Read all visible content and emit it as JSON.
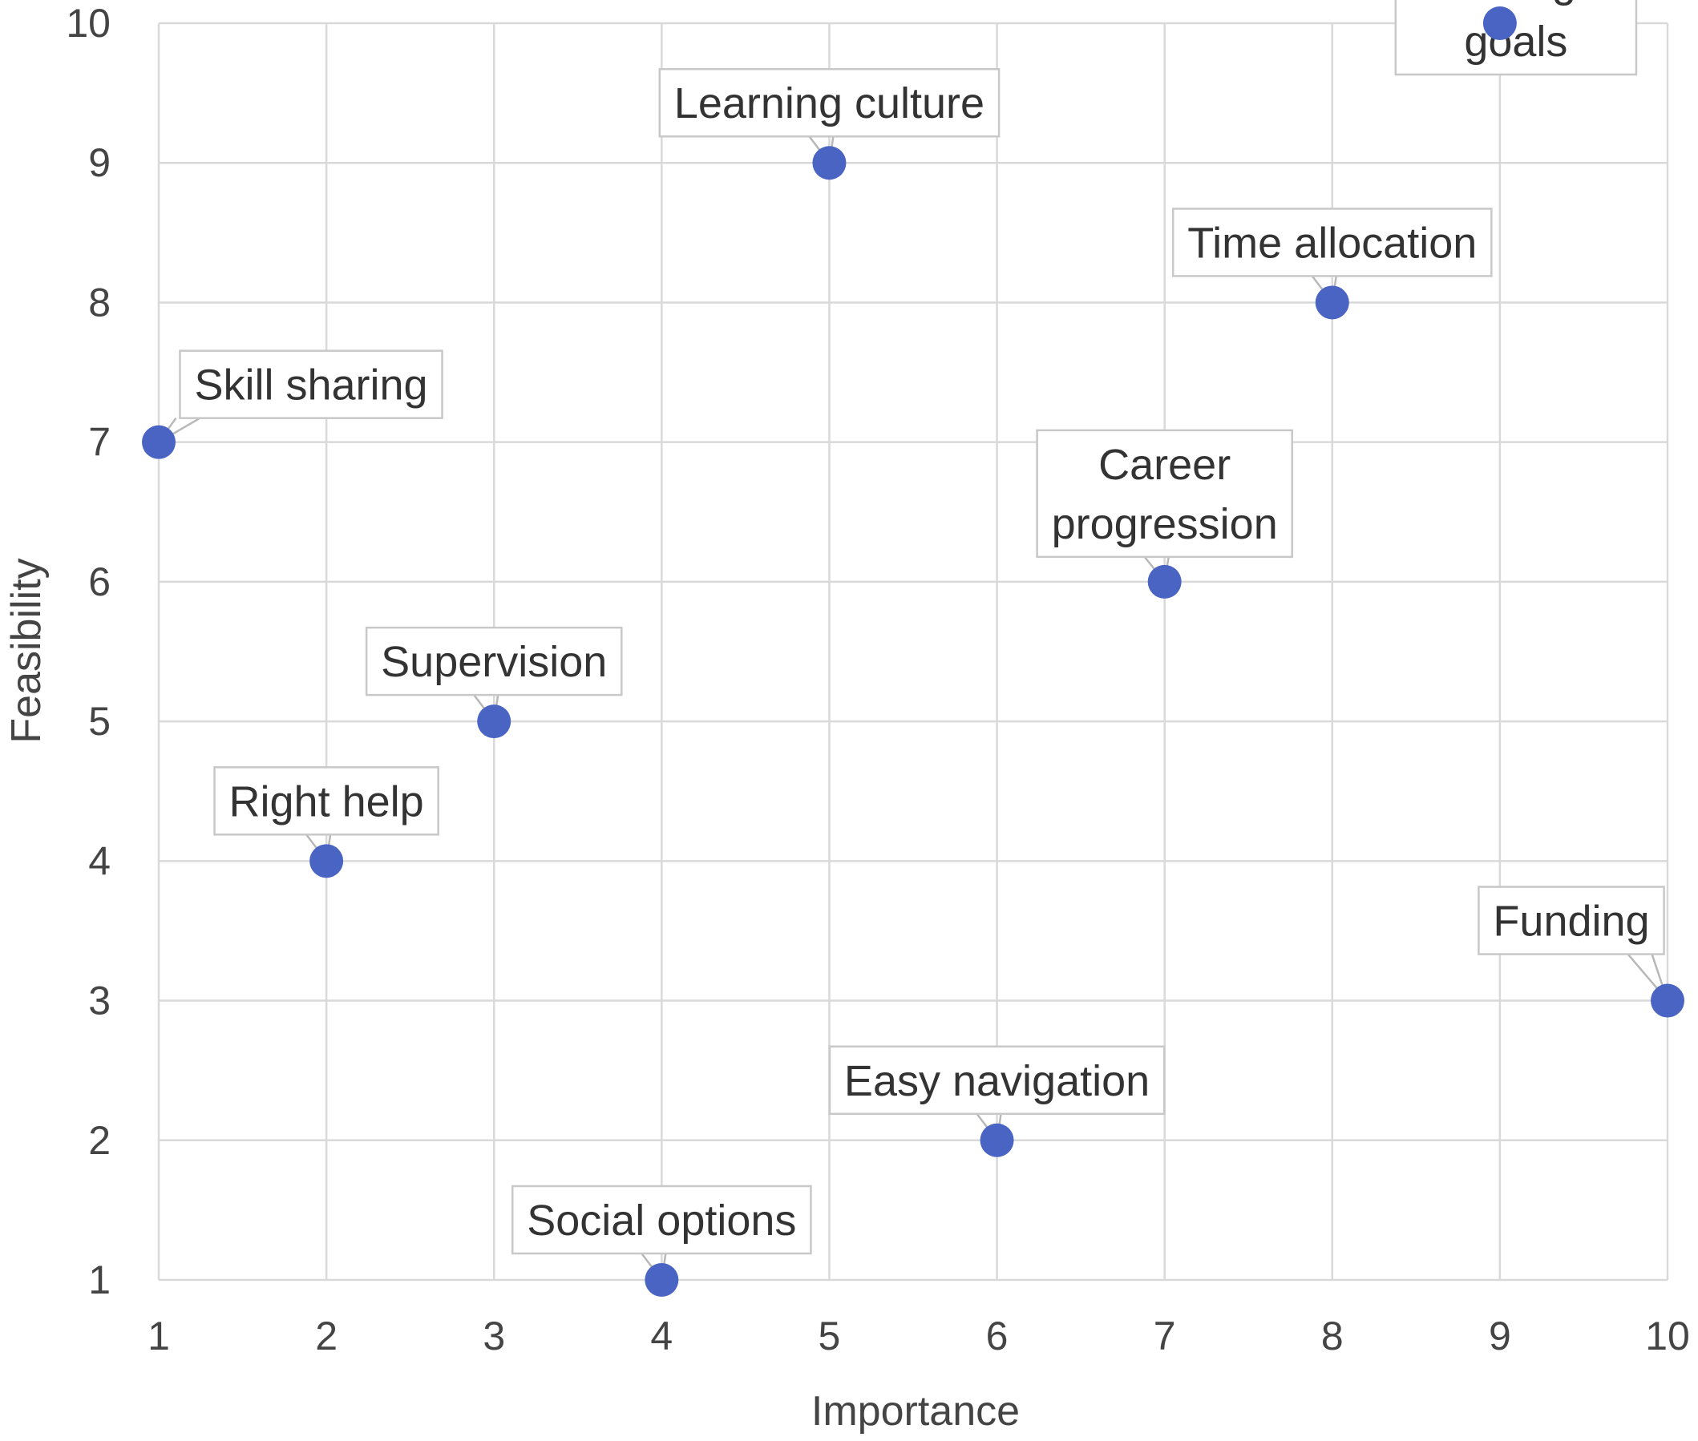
{
  "chart_data": {
    "type": "scatter",
    "xlabel": "Importance",
    "ylabel": "Feasibility",
    "xlim": [
      1,
      10
    ],
    "ylim": [
      1,
      10
    ],
    "x_ticks": [
      "1",
      "2",
      "3",
      "4",
      "5",
      "6",
      "7",
      "8",
      "9",
      "10"
    ],
    "y_ticks": [
      "1",
      "2",
      "3",
      "4",
      "5",
      "6",
      "7",
      "8",
      "9",
      "10"
    ],
    "grid": true,
    "marker_color": "#4a64c4",
    "points": [
      {
        "label": "Meaningful goals",
        "x": 9,
        "y": 10
      },
      {
        "label": "Learning culture",
        "x": 5,
        "y": 9
      },
      {
        "label": "Time allocation",
        "x": 8,
        "y": 8
      },
      {
        "label": "Skill sharing",
        "x": 1,
        "y": 7
      },
      {
        "label": "Career progression",
        "x": 7,
        "y": 6
      },
      {
        "label": "Supervision",
        "x": 3,
        "y": 5
      },
      {
        "label": "Right help",
        "x": 2,
        "y": 4
      },
      {
        "label": "Funding",
        "x": 10,
        "y": 3
      },
      {
        "label": "Easy navigation",
        "x": 6,
        "y": 2
      },
      {
        "label": "Social options",
        "x": 4,
        "y": 1
      }
    ]
  }
}
